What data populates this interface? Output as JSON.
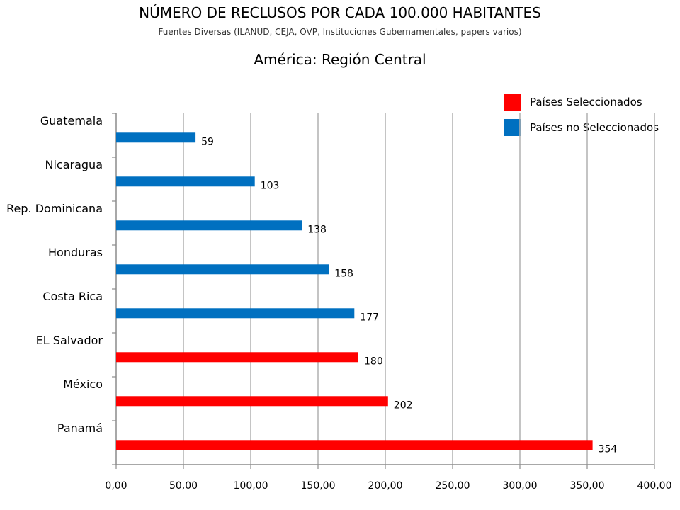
{
  "header": {
    "title": "NÚMERO DE RECLUSOS POR CADA 100.000 HABITANTES",
    "subtitle": "Fuentes Diversas (ILANUD, CEJA, OVP, Instituciones Gubernamentales, papers varios)",
    "region": "América: Región Central"
  },
  "legend": {
    "items": [
      {
        "label": "Países Seleccionados",
        "color": "#ff0000"
      },
      {
        "label": "Países no Seleccionados",
        "color": "#0070c0"
      }
    ]
  },
  "chart_data": {
    "type": "bar",
    "orientation": "horizontal",
    "categories": [
      "Guatemala",
      "Nicaragua",
      "Rep. Dominicana",
      "Honduras",
      "Costa Rica",
      "EL Salvador",
      "México",
      "Panamá"
    ],
    "values": [
      59,
      103,
      138,
      158,
      177,
      180,
      202,
      354
    ],
    "data_labels": [
      "59",
      "103",
      "138",
      "158",
      "177",
      "180",
      "202",
      "354"
    ],
    "selected": [
      false,
      false,
      false,
      false,
      false,
      true,
      true,
      true
    ],
    "xlim": [
      0,
      400
    ],
    "xticks": [
      0,
      50,
      100,
      150,
      200,
      250,
      300,
      350,
      400
    ],
    "xtick_labels": [
      "0,00",
      "50,00",
      "100,00",
      "150,00",
      "200,00",
      "250,00",
      "300,00",
      "350,00",
      "400,00"
    ],
    "grid": true,
    "legend_position": "top-right",
    "colors": {
      "selected": "#ff0000",
      "not_selected": "#0070c0",
      "grid": "#b0b0b0"
    }
  }
}
